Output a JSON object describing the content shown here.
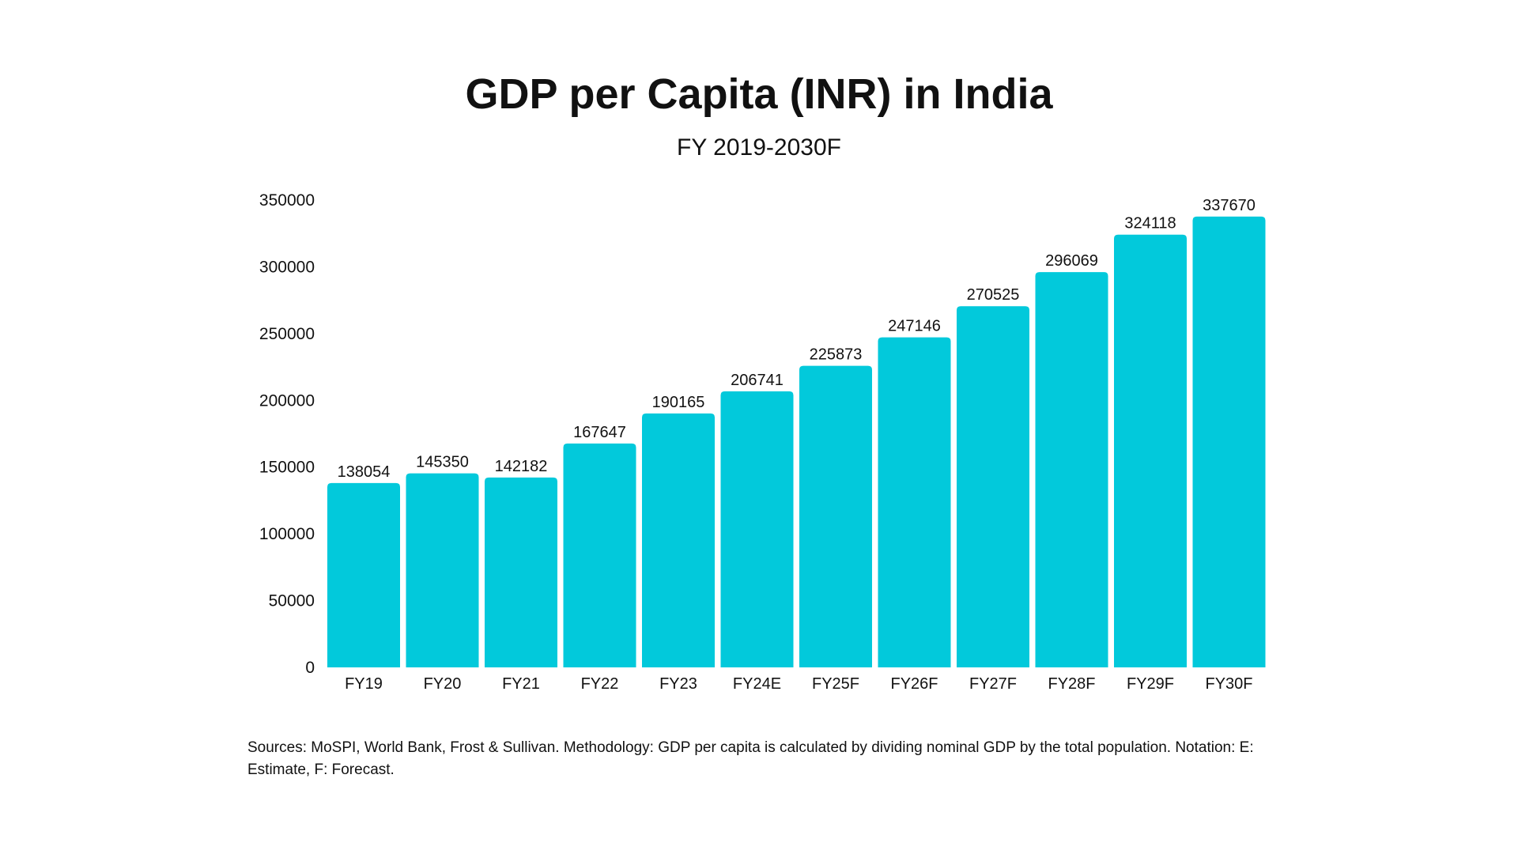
{
  "chart_data": {
    "type": "bar",
    "title": "GDP per Capita (INR) in India",
    "subtitle": "FY 2019-2030F",
    "categories": [
      "FY19",
      "FY20",
      "FY21",
      "FY22",
      "FY23",
      "FY24E",
      "FY25F",
      "FY26F",
      "FY27F",
      "FY28F",
      "FY29F",
      "FY30F"
    ],
    "values": [
      138054,
      145350,
      142182,
      167647,
      190165,
      206741,
      225873,
      247146,
      270525,
      296069,
      324118,
      337670
    ],
    "xlabel": "",
    "ylabel": "",
    "ylim": [
      0,
      350000
    ],
    "yticks": [
      0,
      50000,
      100000,
      150000,
      200000,
      250000,
      300000,
      350000
    ],
    "grid": false,
    "data_labels": true,
    "bar_color": "#02c9db"
  },
  "footnote": "Sources: MoSPI, World Bank, Frost & Sullivan. Methodology: GDP per capita is calculated by dividing nominal GDP by the total population. Notation: E: Estimate, F: Forecast."
}
